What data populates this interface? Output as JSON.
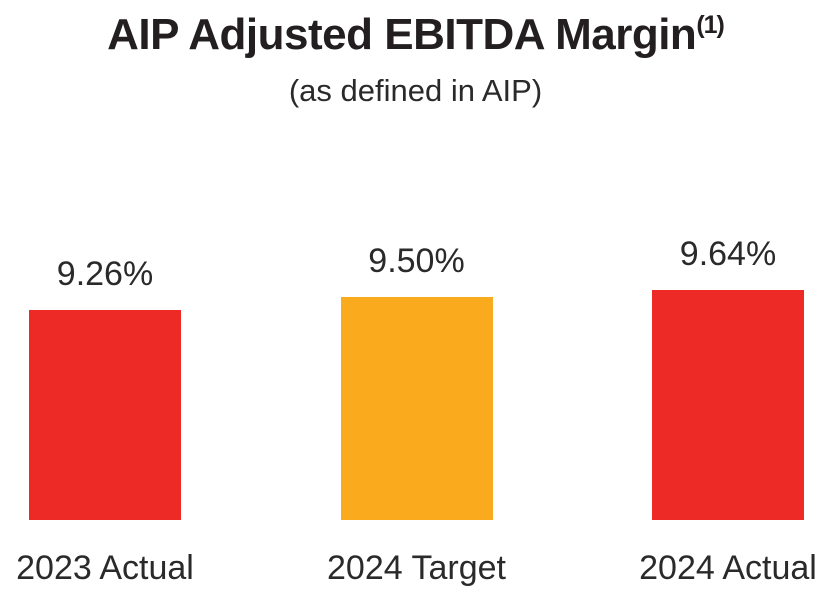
{
  "header": {
    "title": "AIP Adjusted EBITDA Margin",
    "title_superscript": "(1)",
    "subtitle": "(as defined in AIP)"
  },
  "chart_data": {
    "type": "bar",
    "title": "AIP Adjusted EBITDA Margin(1)",
    "subtitle": "(as defined in AIP)",
    "categories": [
      "2023 Actual",
      "2024 Target",
      "2024 Actual"
    ],
    "values": [
      9.26,
      9.5,
      9.64
    ],
    "value_labels": [
      "9.26%",
      "9.50%",
      "9.64%"
    ],
    "bar_colors": [
      "#EE2A26",
      "#F9AB1D",
      "#EE2A26"
    ],
    "xlabel": "",
    "ylabel": "",
    "ylim": [
      5.3,
      9.64
    ],
    "grid": false,
    "legend": false,
    "data_labels_position": "above-bars"
  },
  "colors": {
    "red": "#EE2A26",
    "orange": "#F9AB1D",
    "text_dark": "#231F20",
    "text_label": "#2B2A2B",
    "background": "#FFFFFF"
  }
}
